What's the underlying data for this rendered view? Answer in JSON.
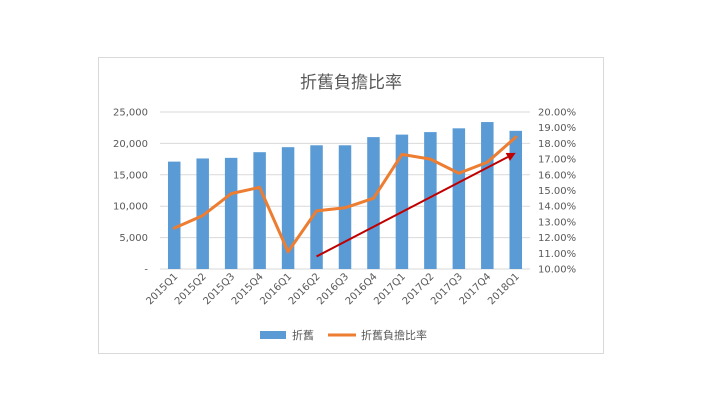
{
  "chart_data": {
    "type": "bar",
    "title": "折舊負擔比率",
    "categories": [
      "2015Q1",
      "2015Q2",
      "2015Q3",
      "2015Q4",
      "2016Q1",
      "2016Q2",
      "2016Q3",
      "2016Q4",
      "2017Q1",
      "2017Q2",
      "2017Q3",
      "2017Q4",
      "2018Q1"
    ],
    "series": [
      {
        "name": "折舊",
        "type": "bar",
        "axis": "left",
        "color": "#5b9bd5",
        "values": [
          17100,
          17600,
          17700,
          18600,
          19400,
          19700,
          19700,
          21000,
          21400,
          21800,
          22400,
          23400,
          22000
        ]
      },
      {
        "name": "折舊負擔比率",
        "type": "line",
        "axis": "right",
        "color": "#ed7d31",
        "values": [
          12.6,
          13.4,
          14.8,
          15.2,
          11.1,
          13.7,
          13.9,
          14.5,
          17.3,
          17.0,
          16.1,
          16.8,
          18.4
        ]
      }
    ],
    "left_axis": {
      "min": 0,
      "max": 25000,
      "step": 5000,
      "tick_labels": [
        "-",
        "5,000",
        "10,000",
        "15,000",
        "20,000",
        "25,000"
      ]
    },
    "right_axis": {
      "min": 10,
      "max": 20,
      "step": 1,
      "tick_labels": [
        "10.00%",
        "11.00%",
        "12.00%",
        "13.00%",
        "14.00%",
        "15.00%",
        "16.00%",
        "17.00%",
        "18.00%",
        "19.00%",
        "20.00%"
      ]
    },
    "trend_arrow": {
      "color": "#c00000",
      "from": {
        "category": "2016Q2",
        "value": 10.8
      },
      "to": {
        "category": "2018Q1",
        "value": 17.4
      }
    },
    "legend_position": "bottom",
    "grid": true
  }
}
